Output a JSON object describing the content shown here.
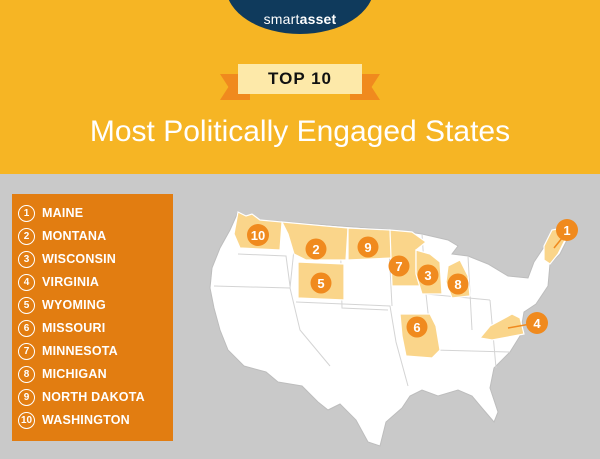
{
  "header": {
    "logo": {
      "part1": "smart",
      "part2": "asset"
    },
    "ribbon_label": "TOP 10",
    "title": "Most Politically Engaged States"
  },
  "ranking": [
    {
      "rank": "1",
      "state": "MAINE"
    },
    {
      "rank": "2",
      "state": "MONTANA"
    },
    {
      "rank": "3",
      "state": "WISCONSIN"
    },
    {
      "rank": "4",
      "state": "VIRGINIA"
    },
    {
      "rank": "5",
      "state": "WYOMING"
    },
    {
      "rank": "6",
      "state": "MISSOURI"
    },
    {
      "rank": "7",
      "state": "MINNESOTA"
    },
    {
      "rank": "8",
      "state": "MICHIGAN"
    },
    {
      "rank": "9",
      "state": "NORTH DAKOTA"
    },
    {
      "rank": "10",
      "state": "WASHINGTON"
    }
  ],
  "colors": {
    "header_bg": "#f6b524",
    "list_bg": "#e27d11",
    "badge": "#f08a1e",
    "highlight_state": "#fad58a",
    "map_bg": "#c9c9c9",
    "logo_bg": "#0f3a5c"
  }
}
